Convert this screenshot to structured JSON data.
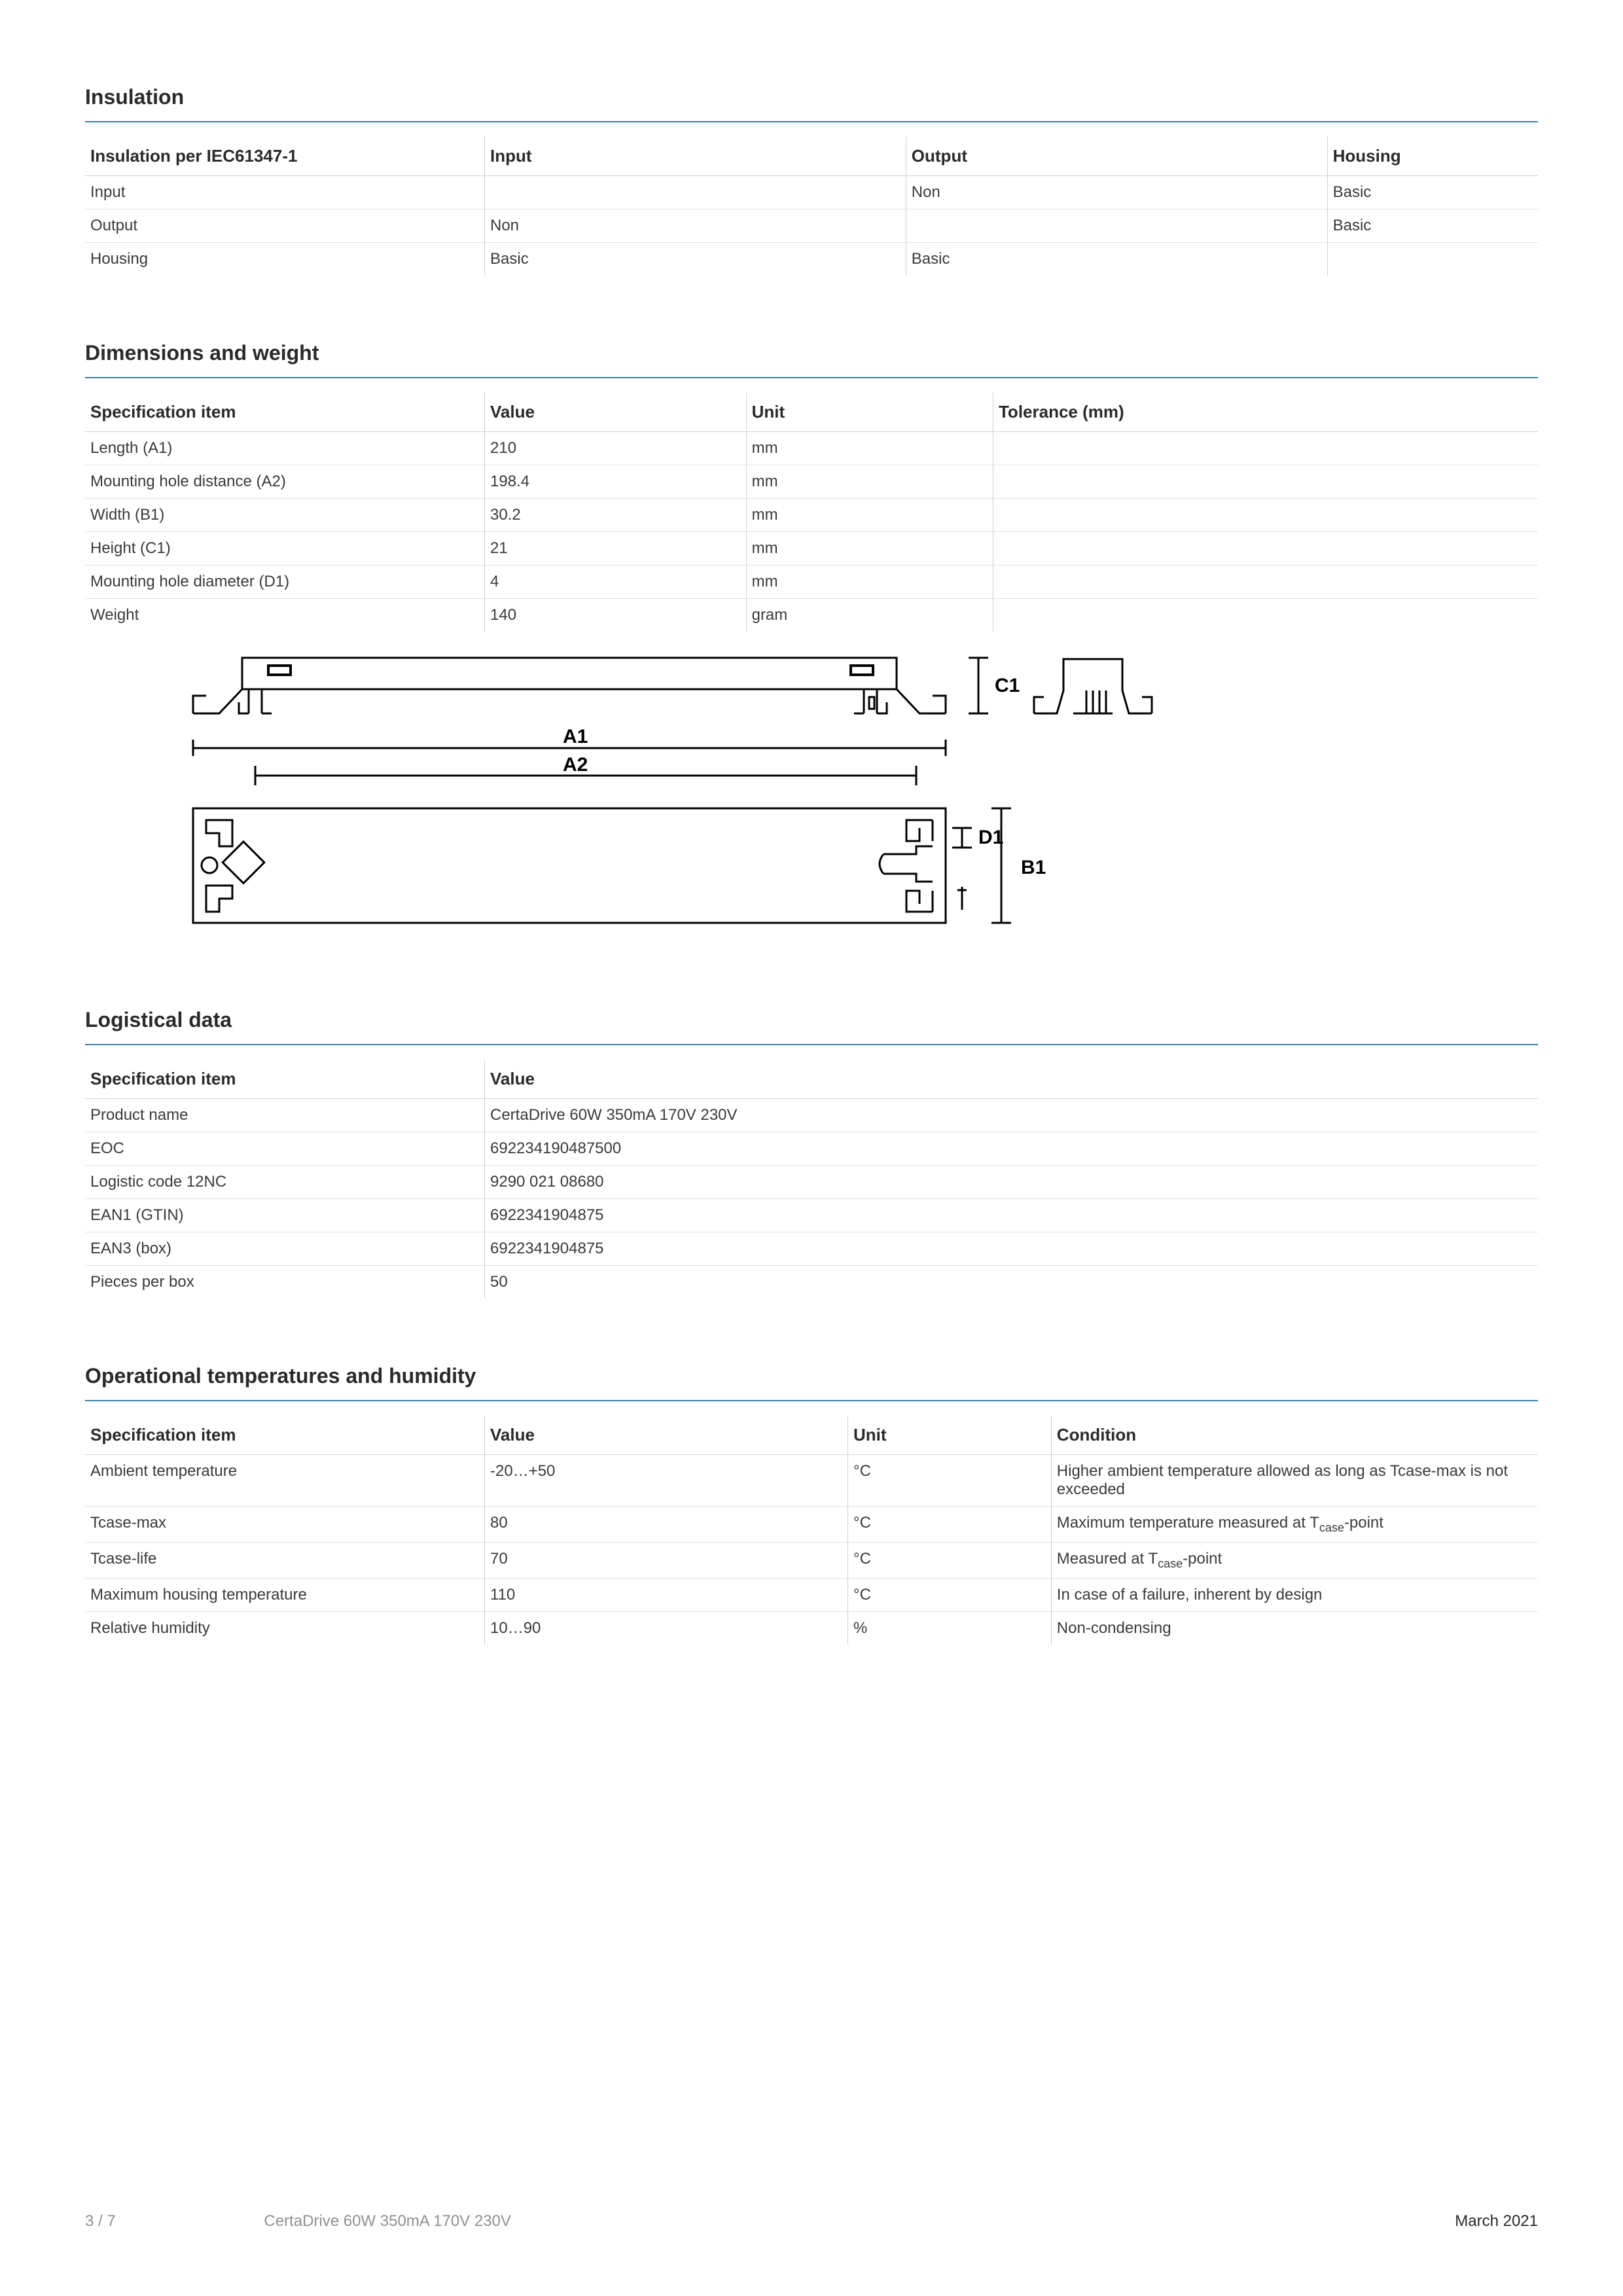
{
  "insulation": {
    "title": "Insulation",
    "headers": [
      "Insulation per IEC61347-1",
      "Input",
      "Output",
      "Housing"
    ],
    "rows": [
      [
        "Input",
        "",
        "Non",
        "Basic"
      ],
      [
        "Output",
        "Non",
        "",
        "Basic"
      ],
      [
        "Housing",
        "Basic",
        "Basic",
        ""
      ]
    ]
  },
  "dimensions": {
    "title": "Dimensions and weight",
    "headers": [
      "Specification item",
      "Value",
      "Unit",
      "Tolerance (mm)"
    ],
    "rows": [
      [
        "Length (A1)",
        "210",
        "mm",
        ""
      ],
      [
        "Mounting hole distance (A2)",
        "198.4",
        "mm",
        ""
      ],
      [
        "Width (B1)",
        "30.2",
        "mm",
        ""
      ],
      [
        "Height (C1)",
        "21",
        "mm",
        ""
      ],
      [
        "Mounting hole diameter (D1)",
        "4",
        "mm",
        ""
      ],
      [
        "Weight",
        "140",
        "gram",
        ""
      ]
    ],
    "diagram": {
      "labels": {
        "A1": "A1",
        "A2": "A2",
        "B1": "B1",
        "C1": "C1",
        "D1": "D1"
      },
      "stroke": "#000000",
      "stroke_width": 2,
      "font_size": 26,
      "font_weight": 700
    }
  },
  "logistical": {
    "title": "Logistical data",
    "headers": [
      "Specification item",
      "Value"
    ],
    "rows": [
      [
        "Product name",
        "CertaDrive 60W 350mA 170V 230V"
      ],
      [
        "EOC",
        "692234190487500"
      ],
      [
        "Logistic code 12NC",
        "9290 021 08680"
      ],
      [
        "EAN1 (GTIN)",
        "6922341904875"
      ],
      [
        "EAN3 (box)",
        "6922341904875"
      ],
      [
        "Pieces per box",
        "50"
      ]
    ]
  },
  "operational": {
    "title": "Operational temperatures and humidity",
    "headers": [
      "Specification item",
      "Value",
      "Unit",
      "Condition"
    ],
    "rows": [
      [
        "Ambient temperature",
        "-20…+50",
        "°C",
        "Higher ambient temperature allowed as long as Tcase-max is not exceeded"
      ],
      [
        "Tcase-max",
        "80",
        "°C",
        "Maximum temperature measured at T<sub>case</sub>-point"
      ],
      [
        "Tcase-life",
        "70",
        "°C",
        "Measured at T<sub>case</sub>-point"
      ],
      [
        "Maximum housing temperature",
        "110",
        "°C",
        "In case of a failure, inherent by design"
      ],
      [
        "Relative humidity",
        "10…90",
        "%",
        "Non-condensing"
      ]
    ]
  },
  "footer": {
    "page": "3 / 7",
    "product": "CertaDrive 60W 350mA 170V 230V",
    "date": "March 2021"
  }
}
